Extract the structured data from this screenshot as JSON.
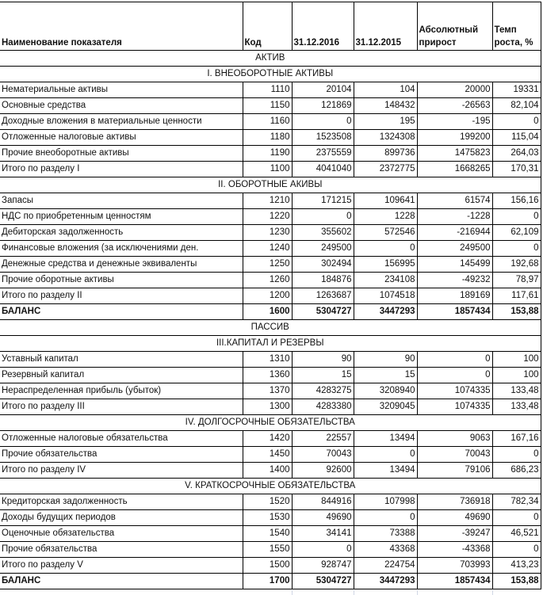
{
  "headers": {
    "name": "Наименование показателя",
    "code": "Код",
    "v2016": "31.12.2016",
    "v2015": "31.12.2015",
    "abs": "Абсолютный прирост",
    "rate": "Темп роста, %"
  },
  "rows": [
    {
      "section": "АКТИВ"
    },
    {
      "section": "I. ВНЕОБОРОТНЫЕ АКТИВЫ"
    },
    {
      "name": "Нематериальные активы",
      "code": "1110",
      "v2016": "20104",
      "v2015": "104",
      "abs": "20000",
      "rate": "19331"
    },
    {
      "name": "Основные средства",
      "code": "1150",
      "v2016": "121869",
      "v2015": "148432",
      "abs": "-26563",
      "rate": "82,104"
    },
    {
      "name": "Доходные вложения в материальные ценности",
      "code": "1160",
      "v2016": "0",
      "v2015": "195",
      "abs": "-195",
      "rate": "0"
    },
    {
      "name": "Отложенные налоговые активы",
      "code": "1180",
      "v2016": "1523508",
      "v2015": "1324308",
      "abs": "199200",
      "rate": "115,04"
    },
    {
      "name": "Прочие внеоборотные активы",
      "code": "1190",
      "v2016": "2375559",
      "v2015": "899736",
      "abs": "1475823",
      "rate": "264,03"
    },
    {
      "name": "Итого по разделу I",
      "code": "1100",
      "v2016": "4041040",
      "v2015": "2372775",
      "abs": "1668265",
      "rate": "170,31"
    },
    {
      "section": "II. ОБОРОТНЫЕ АКИВЫ"
    },
    {
      "name": "Запасы",
      "code": "1210",
      "v2016": "171215",
      "v2015": "109641",
      "abs": "61574",
      "rate": "156,16"
    },
    {
      "name": "НДС по приобретенным ценностям",
      "code": "1220",
      "v2016": "0",
      "v2015": "1228",
      "abs": "-1228",
      "rate": "0"
    },
    {
      "name": "Дебиторская задолженность",
      "code": "1230",
      "v2016": "355602",
      "v2015": "572546",
      "abs": "-216944",
      "rate": "62,109"
    },
    {
      "name": "Финансовые вложения (за исключениями ден.",
      "code": "1240",
      "v2016": "249500",
      "v2015": "0",
      "abs": "249500",
      "rate": "0"
    },
    {
      "name": "Денежные средства и денежные эквиваленты",
      "code": "1250",
      "v2016": "302494",
      "v2015": "156995",
      "abs": "145499",
      "rate": "192,68"
    },
    {
      "name": "Прочие оборотные активы",
      "code": "1260",
      "v2016": "184876",
      "v2015": "234108",
      "abs": "-49232",
      "rate": "78,97"
    },
    {
      "name": "Итого по разделу II",
      "code": "1200",
      "v2016": "1263687",
      "v2015": "1074518",
      "abs": "189169",
      "rate": "117,61"
    },
    {
      "name": "БАЛАНС",
      "code": "1600",
      "v2016": "5304727",
      "v2015": "3447293",
      "abs": "1857434",
      "rate": "153,88",
      "bold": true
    },
    {
      "section": "ПАССИВ"
    },
    {
      "section": "III.КАПИТАЛ И РЕЗЕРВЫ"
    },
    {
      "name": "Уставный капитал",
      "code": "1310",
      "v2016": "90",
      "v2015": "90",
      "abs": "0",
      "rate": "100"
    },
    {
      "name": "Резервный капитал",
      "code": "1360",
      "v2016": "15",
      "v2015": "15",
      "abs": "0",
      "rate": "100"
    },
    {
      "name": "Нераспределенная прибыль (убыток)",
      "code": "1370",
      "v2016": "4283275",
      "v2015": "3208940",
      "abs": "1074335",
      "rate": "133,48"
    },
    {
      "name": "Итого по разделу III",
      "code": "1300",
      "v2016": "4283380",
      "v2015": "3209045",
      "abs": "1074335",
      "rate": "133,48"
    },
    {
      "section": "IV. ДОЛГОСРОЧНЫЕ ОБЯЗАТЕЛЬСТВА"
    },
    {
      "name": "Отложенные налоговые обязательства",
      "code": "1420",
      "v2016": "22557",
      "v2015": "13494",
      "abs": "9063",
      "rate": "167,16"
    },
    {
      "name": "Прочие обязательства",
      "code": "1450",
      "v2016": "70043",
      "v2015": "0",
      "abs": "70043",
      "rate": "0"
    },
    {
      "name": "Итого по разделу IV",
      "code": "1400",
      "v2016": "92600",
      "v2015": "13494",
      "abs": "79106",
      "rate": "686,23"
    },
    {
      "section": "V. КРАТКОСРОЧНЫЕ ОБЯЗАТЕЛЬСТВА"
    },
    {
      "name": "Кредиторская задолженность",
      "code": "1520",
      "v2016": "844916",
      "v2015": "107998",
      "abs": "736918",
      "rate": "782,34"
    },
    {
      "name": "Доходы будущих периодов",
      "code": "1530",
      "v2016": "49690",
      "v2015": "0",
      "abs": "49690",
      "rate": "0"
    },
    {
      "name": "Оценочные обязательства",
      "code": "1540",
      "v2016": "34141",
      "v2015": "73388",
      "abs": "-39247",
      "rate": "46,521"
    },
    {
      "name": "Прочие обязательства",
      "code": "1550",
      "v2016": "0",
      "v2015": "43368",
      "abs": "-43368",
      "rate": "0"
    },
    {
      "name": "Итого по разделу V",
      "code": "1500",
      "v2016": "928747",
      "v2015": "224754",
      "abs": "703993",
      "rate": "413,23"
    },
    {
      "name": "БАЛАНС",
      "code": "1700",
      "v2016": "5304727",
      "v2015": "3447293",
      "abs": "1857434",
      "rate": "153,88",
      "bold": true
    }
  ]
}
